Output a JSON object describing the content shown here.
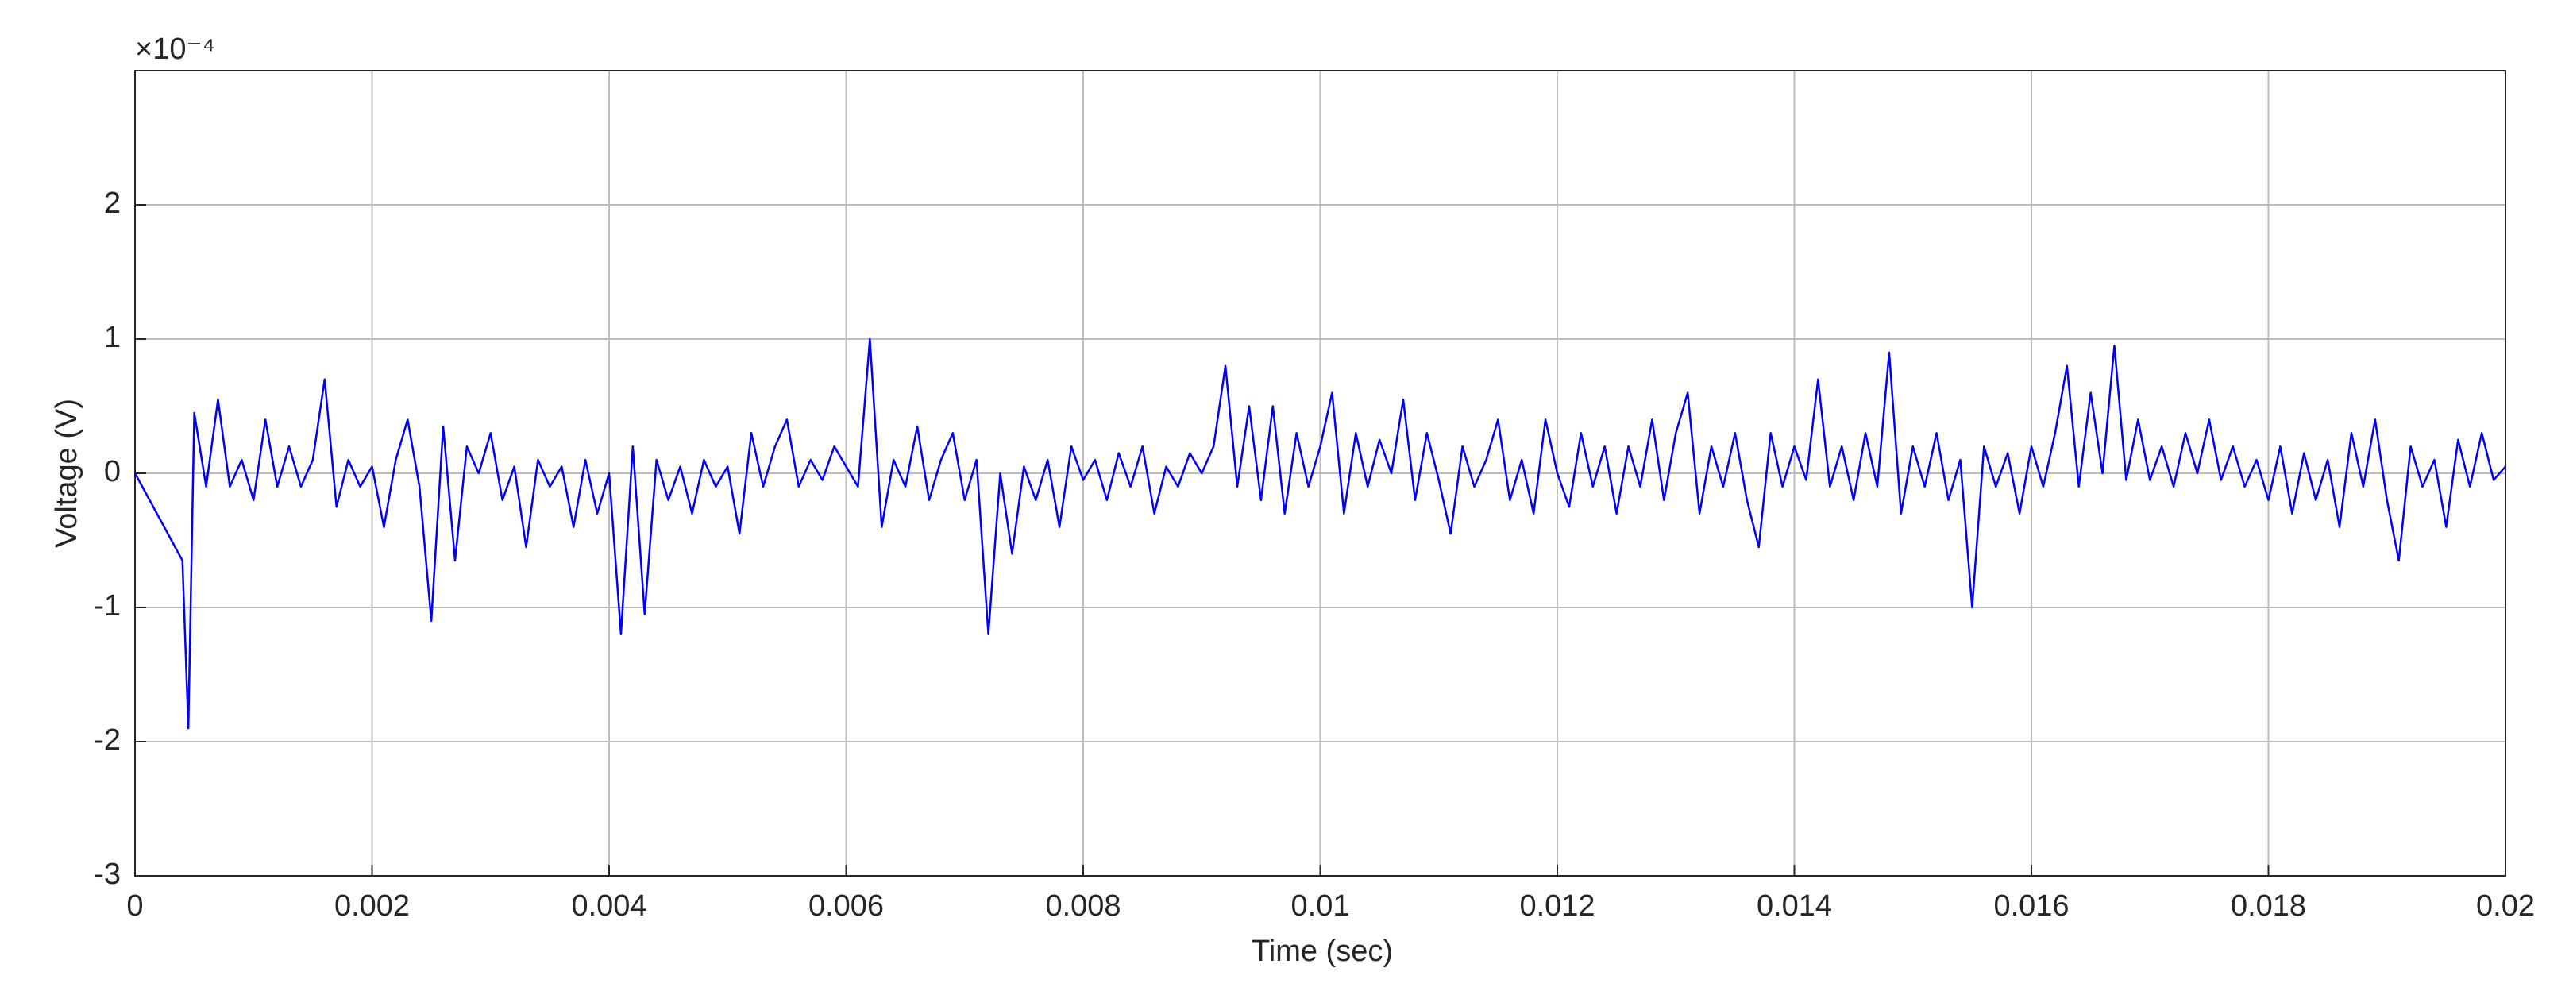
{
  "chart_data": {
    "type": "line",
    "xlabel": "Time (sec)",
    "ylabel": "Voltage (V)",
    "y_exponent": "×10⁻⁴",
    "xlim": [
      0,
      0.02
    ],
    "xticks": [
      0,
      0.002,
      0.004,
      0.006,
      0.008,
      0.01,
      0.012,
      0.014,
      0.016,
      0.018,
      0.02
    ],
    "ylim": [
      -3,
      3
    ],
    "yticks": [
      -3,
      -2,
      -1,
      0,
      1,
      2
    ],
    "grid": true,
    "series": [
      {
        "color": "#0000ff",
        "x": [
          0,
          0.0004,
          0.00045,
          0.0005,
          0.0006,
          0.0007,
          0.0008,
          0.0009,
          0.001,
          0.0011,
          0.0012,
          0.0013,
          0.0014,
          0.0015,
          0.0016,
          0.0017,
          0.0018,
          0.0019,
          0.002,
          0.0021,
          0.0022,
          0.0023,
          0.0024,
          0.0025,
          0.0026,
          0.0027,
          0.0028,
          0.0029,
          0.003,
          0.0031,
          0.0032,
          0.0033,
          0.0034,
          0.0035,
          0.0036,
          0.0037,
          0.0038,
          0.0039,
          0.004,
          0.0041,
          0.0042,
          0.0043,
          0.0044,
          0.0045,
          0.0046,
          0.0047,
          0.0048,
          0.0049,
          0.005,
          0.0051,
          0.0052,
          0.0053,
          0.0054,
          0.0055,
          0.0056,
          0.0057,
          0.0058,
          0.0059,
          0.006,
          0.0061,
          0.0062,
          0.0063,
          0.0064,
          0.0065,
          0.0066,
          0.0067,
          0.0068,
          0.0069,
          0.007,
          0.0071,
          0.0072,
          0.0073,
          0.0074,
          0.0075,
          0.0076,
          0.0077,
          0.0078,
          0.0079,
          0.008,
          0.0081,
          0.0082,
          0.0083,
          0.0084,
          0.0085,
          0.0086,
          0.0087,
          0.0088,
          0.0089,
          0.009,
          0.0091,
          0.0092,
          0.0093,
          0.0094,
          0.0095,
          0.0096,
          0.0097,
          0.0098,
          0.0099,
          0.01,
          0.0101,
          0.0102,
          0.0103,
          0.0104,
          0.0105,
          0.0106,
          0.0107,
          0.0108,
          0.0109,
          0.011,
          0.0111,
          0.0112,
          0.0113,
          0.0114,
          0.0115,
          0.0116,
          0.0117,
          0.0118,
          0.0119,
          0.012,
          0.0121,
          0.0122,
          0.0123,
          0.0124,
          0.0125,
          0.0126,
          0.0127,
          0.0128,
          0.0129,
          0.013,
          0.0131,
          0.0132,
          0.0133,
          0.0134,
          0.0135,
          0.0136,
          0.0137,
          0.0138,
          0.0139,
          0.014,
          0.0141,
          0.0142,
          0.0143,
          0.0144,
          0.0145,
          0.0146,
          0.0147,
          0.0148,
          0.0149,
          0.015,
          0.0151,
          0.0152,
          0.0153,
          0.0154,
          0.0155,
          0.0156,
          0.0157,
          0.0158,
          0.0159,
          0.016,
          0.0161,
          0.0162,
          0.0163,
          0.0164,
          0.0165,
          0.0166,
          0.0167,
          0.0168,
          0.0169,
          0.017,
          0.0171,
          0.0172,
          0.0173,
          0.0174,
          0.0175,
          0.0176,
          0.0177,
          0.0178,
          0.0179,
          0.018,
          0.0181,
          0.0182,
          0.0183,
          0.0184,
          0.0185,
          0.0186,
          0.0187,
          0.0188,
          0.0189,
          0.019,
          0.0191,
          0.0192,
          0.0193,
          0.0194,
          0.0195,
          0.0196,
          0.0197,
          0.0198,
          0.0199,
          0.02
        ],
        "values": [
          0,
          -0.65,
          -1.9,
          0.45,
          -0.1,
          0.55,
          -0.1,
          0.1,
          -0.2,
          0.4,
          -0.1,
          0.2,
          -0.1,
          0.1,
          0.7,
          -0.25,
          0.1,
          -0.1,
          0.05,
          -0.4,
          0.1,
          0.4,
          -0.1,
          -1.1,
          0.35,
          -0.65,
          0.2,
          0.0,
          0.3,
          -0.2,
          0.05,
          -0.55,
          0.1,
          -0.1,
          0.05,
          -0.4,
          0.1,
          -0.3,
          0.0,
          -1.2,
          0.2,
          -1.05,
          0.1,
          -0.2,
          0.05,
          -0.3,
          0.1,
          -0.1,
          0.05,
          -0.45,
          0.3,
          -0.1,
          0.2,
          0.4,
          -0.1,
          0.1,
          -0.05,
          0.2,
          0.05,
          -0.1,
          1.0,
          -0.4,
          0.1,
          -0.1,
          0.35,
          -0.2,
          0.1,
          0.3,
          -0.2,
          0.1,
          -1.2,
          0.0,
          -0.6,
          0.05,
          -0.2,
          0.1,
          -0.4,
          0.2,
          -0.05,
          0.1,
          -0.2,
          0.15,
          -0.1,
          0.2,
          -0.3,
          0.05,
          -0.1,
          0.15,
          0.0,
          0.2,
          0.8,
          -0.1,
          0.5,
          -0.2,
          0.5,
          -0.3,
          0.3,
          -0.1,
          0.2,
          0.6,
          -0.3,
          0.3,
          -0.1,
          0.25,
          0.0,
          0.55,
          -0.2,
          0.3,
          -0.05,
          -0.45,
          0.2,
          -0.1,
          0.1,
          0.4,
          -0.2,
          0.1,
          -0.3,
          0.4,
          0.0,
          -0.25,
          0.3,
          -0.1,
          0.2,
          -0.3,
          0.2,
          -0.1,
          0.4,
          -0.2,
          0.3,
          0.6,
          -0.3,
          0.2,
          -0.1,
          0.3,
          -0.2,
          -0.55,
          0.3,
          -0.1,
          0.2,
          -0.05,
          0.7,
          -0.1,
          0.2,
          -0.2,
          0.3,
          -0.1,
          0.9,
          -0.3,
          0.2,
          -0.1,
          0.3,
          -0.2,
          0.1,
          -1.0,
          0.2,
          -0.1,
          0.15,
          -0.3,
          0.2,
          -0.1,
          0.3,
          0.8,
          -0.1,
          0.6,
          0.0,
          0.95,
          -0.05,
          0.4,
          -0.05,
          0.2,
          -0.1,
          0.3,
          0.0,
          0.4,
          -0.05,
          0.2,
          -0.1,
          0.1,
          -0.2,
          0.2,
          -0.3,
          0.15,
          -0.2,
          0.1,
          -0.4,
          0.3,
          -0.1,
          0.4,
          -0.2,
          -0.65,
          0.2,
          -0.1,
          0.1,
          -0.4,
          0.25,
          -0.1,
          0.3,
          -0.05,
          0.05
        ]
      }
    ]
  }
}
